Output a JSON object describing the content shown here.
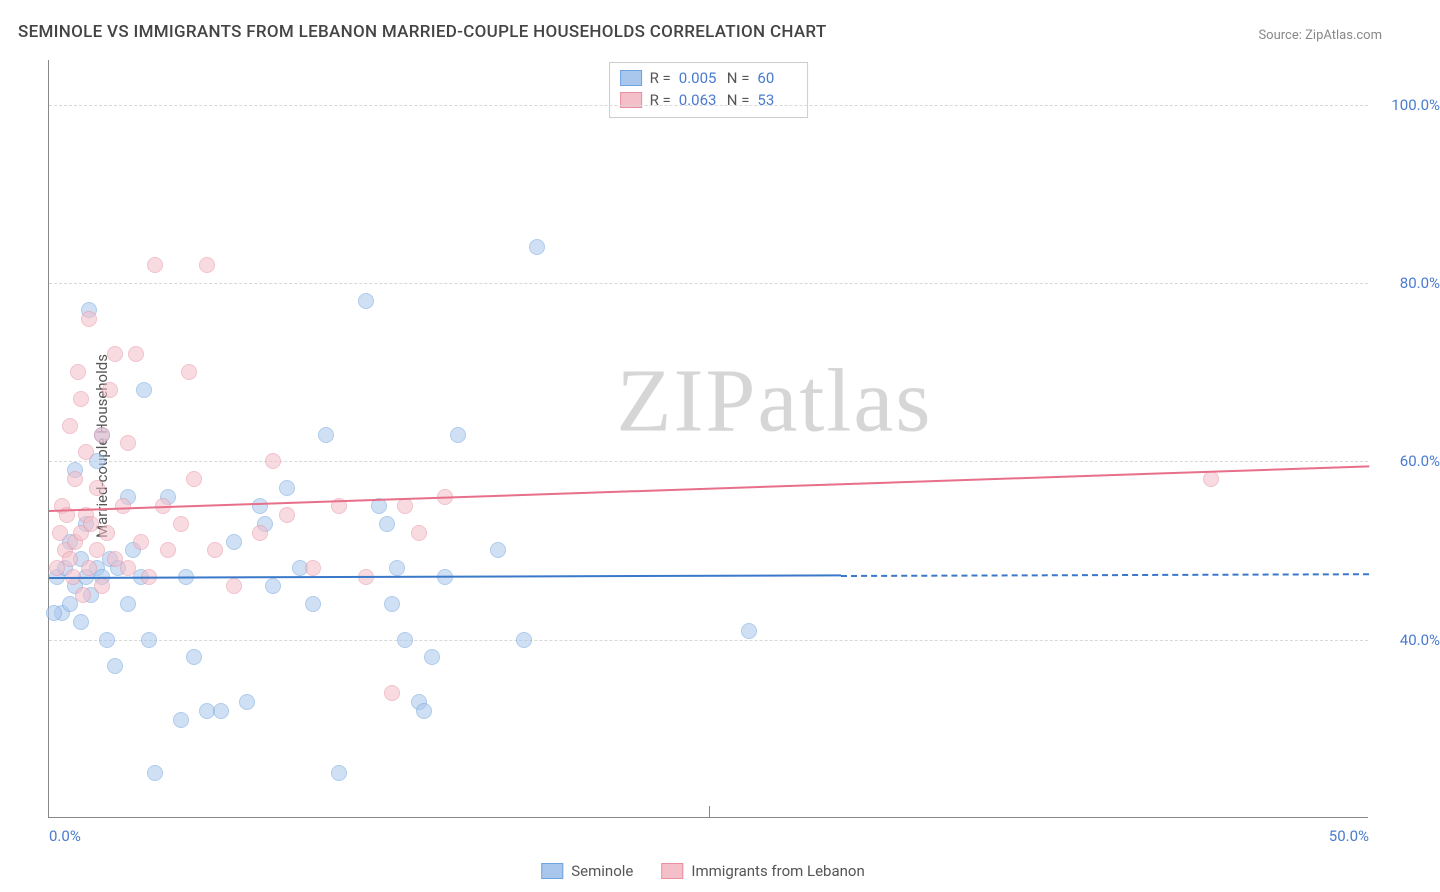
{
  "title": "SEMINOLE VS IMMIGRANTS FROM LEBANON MARRIED-COUPLE HOUSEHOLDS CORRELATION CHART",
  "source_label": "Source:",
  "source_value": "ZipAtlas.com",
  "watermark_a": "ZIP",
  "watermark_b": "atlas",
  "ylabel": "Married-couple Households",
  "chart": {
    "type": "scatter",
    "xlim": [
      0,
      50
    ],
    "ylim": [
      20,
      105
    ],
    "y_ticks": [
      40,
      60,
      80,
      100
    ],
    "y_tick_labels": [
      "40.0%",
      "60.0%",
      "80.0%",
      "100.0%"
    ],
    "x_ticks": [
      0,
      25,
      50
    ],
    "x_tick_labels": [
      "0.0%",
      "",
      "50.0%"
    ],
    "x_minor_line": 25,
    "background_color": "#ffffff",
    "grid_color": "#d8d8d8",
    "axis_color": "#888888",
    "tick_label_color": "#4a7bd0",
    "point_radius": 8,
    "point_opacity": 0.55,
    "series": [
      {
        "name": "Seminole",
        "color_fill": "#a9c7ec",
        "color_stroke": "#6fa3de",
        "line_color": "#3a78c9",
        "r_label": "R =",
        "r_value": "0.005",
        "n_label": "N =",
        "n_value": "60",
        "trend": {
          "x0": 0,
          "y0": 47,
          "x1": 50,
          "y1": 47.5,
          "solid_until_x": 30
        },
        "points": [
          [
            0.3,
            47
          ],
          [
            0.5,
            43
          ],
          [
            0.6,
            48
          ],
          [
            0.8,
            51
          ],
          [
            0.8,
            44
          ],
          [
            1.0,
            46
          ],
          [
            1.0,
            59
          ],
          [
            1.2,
            42
          ],
          [
            1.2,
            49
          ],
          [
            1.4,
            47
          ],
          [
            1.4,
            53
          ],
          [
            1.5,
            77
          ],
          [
            1.6,
            45
          ],
          [
            1.8,
            48
          ],
          [
            1.8,
            60
          ],
          [
            2.0,
            47
          ],
          [
            2.0,
            63
          ],
          [
            2.2,
            40
          ],
          [
            2.3,
            49
          ],
          [
            2.5,
            37
          ],
          [
            2.6,
            48
          ],
          [
            3.0,
            44
          ],
          [
            3.0,
            56
          ],
          [
            3.2,
            50
          ],
          [
            3.5,
            47
          ],
          [
            3.6,
            68
          ],
          [
            3.8,
            40
          ],
          [
            4.0,
            25
          ],
          [
            4.5,
            56
          ],
          [
            5.0,
            31
          ],
          [
            5.2,
            47
          ],
          [
            5.5,
            38
          ],
          [
            6.0,
            32
          ],
          [
            6.5,
            32
          ],
          [
            7.0,
            51
          ],
          [
            7.5,
            33
          ],
          [
            8.0,
            55
          ],
          [
            8.2,
            53
          ],
          [
            8.5,
            46
          ],
          [
            9.0,
            57
          ],
          [
            9.5,
            48
          ],
          [
            10.0,
            44
          ],
          [
            10.5,
            63
          ],
          [
            11.0,
            25
          ],
          [
            12.0,
            78
          ],
          [
            12.5,
            55
          ],
          [
            12.8,
            53
          ],
          [
            13.0,
            44
          ],
          [
            13.2,
            48
          ],
          [
            13.5,
            40
          ],
          [
            14.0,
            33
          ],
          [
            14.2,
            32
          ],
          [
            14.5,
            38
          ],
          [
            15.0,
            47
          ],
          [
            15.5,
            63
          ],
          [
            17.0,
            50
          ],
          [
            18.0,
            40
          ],
          [
            18.5,
            84
          ],
          [
            26.5,
            41
          ],
          [
            0.2,
            43
          ]
        ]
      },
      {
        "name": "Immigrants from Lebanon",
        "color_fill": "#f4bfc9",
        "color_stroke": "#e98fa1",
        "line_color": "#e76f8a",
        "r_label": "R =",
        "r_value": "0.063",
        "n_label": "N =",
        "n_value": "53",
        "trend": {
          "x0": 0,
          "y0": 54.5,
          "x1": 50,
          "y1": 59.5,
          "solid_until_x": 50
        },
        "points": [
          [
            0.3,
            48
          ],
          [
            0.4,
            52
          ],
          [
            0.5,
            55
          ],
          [
            0.6,
            50
          ],
          [
            0.7,
            54
          ],
          [
            0.8,
            49
          ],
          [
            0.8,
            64
          ],
          [
            0.9,
            47
          ],
          [
            1.0,
            51
          ],
          [
            1.0,
            58
          ],
          [
            1.1,
            70
          ],
          [
            1.2,
            52
          ],
          [
            1.2,
            67
          ],
          [
            1.3,
            45
          ],
          [
            1.4,
            54
          ],
          [
            1.4,
            61
          ],
          [
            1.5,
            48
          ],
          [
            1.5,
            76
          ],
          [
            1.6,
            53
          ],
          [
            1.8,
            50
          ],
          [
            1.8,
            57
          ],
          [
            2.0,
            46
          ],
          [
            2.0,
            63
          ],
          [
            2.2,
            52
          ],
          [
            2.3,
            68
          ],
          [
            2.5,
            49
          ],
          [
            2.5,
            72
          ],
          [
            2.8,
            55
          ],
          [
            3.0,
            48
          ],
          [
            3.0,
            62
          ],
          [
            3.3,
            72
          ],
          [
            3.5,
            51
          ],
          [
            3.8,
            47
          ],
          [
            4.0,
            82
          ],
          [
            4.3,
            55
          ],
          [
            4.5,
            50
          ],
          [
            5.0,
            53
          ],
          [
            5.3,
            70
          ],
          [
            5.5,
            58
          ],
          [
            6.0,
            82
          ],
          [
            6.3,
            50
          ],
          [
            7.0,
            46
          ],
          [
            8.0,
            52
          ],
          [
            8.5,
            60
          ],
          [
            9.0,
            54
          ],
          [
            10.0,
            48
          ],
          [
            11.0,
            55
          ],
          [
            12.0,
            47
          ],
          [
            13.0,
            34
          ],
          [
            13.5,
            55
          ],
          [
            14.0,
            52
          ],
          [
            15.0,
            56
          ],
          [
            44.0,
            58
          ]
        ]
      }
    ]
  },
  "bottom_legend": [
    {
      "label": "Seminole",
      "fill": "#a9c7ec",
      "stroke": "#6fa3de"
    },
    {
      "label": "Immigrants from Lebanon",
      "fill": "#f4bfc9",
      "stroke": "#e98fa1"
    }
  ]
}
